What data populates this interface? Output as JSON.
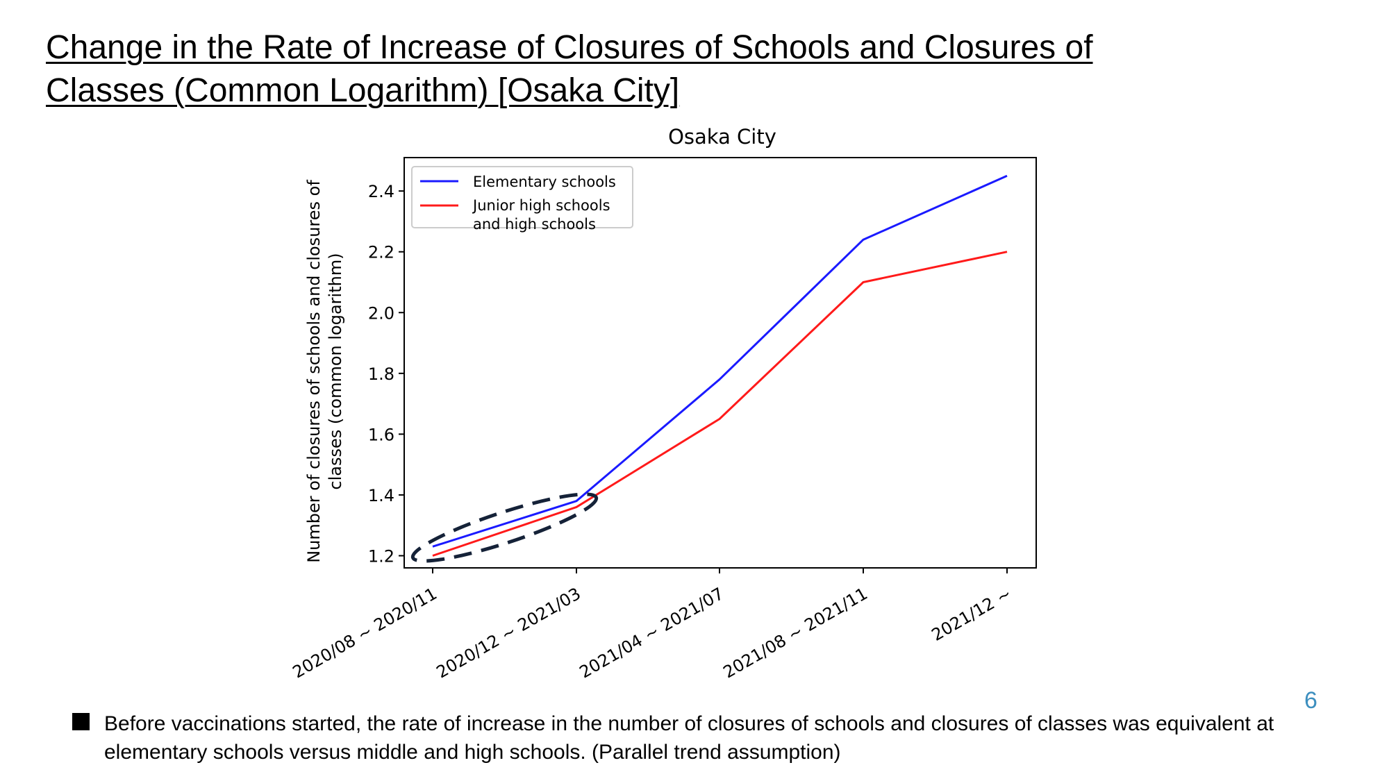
{
  "slide": {
    "title_line1": "Change in the Rate of Increase of Closures of Schools and Closures of",
    "title_line2": "Classes (Common Logarithm) [Osaka City]",
    "note": "Before vaccinations started, the rate of increase in the number of closures of schools and closures of classes was equivalent at elementary schools versus middle and high schools. (Parallel trend assumption)",
    "page_number": "6"
  },
  "chart_data": {
    "type": "line",
    "title": "Osaka City",
    "ylabel_line1": "Number of closures of schools and closures of",
    "ylabel_line2": "classes (common logarithm)",
    "xlabel": "",
    "categories": [
      "2020/08 ~ 2020/11",
      "2020/12 ~ 2021/03",
      "2021/04 ~ 2021/07",
      "2021/08 ~ 2021/11",
      "2021/12 ~"
    ],
    "yticks": [
      "1.2",
      "1.4",
      "1.6",
      "1.8",
      "2.0",
      "2.2",
      "2.4"
    ],
    "ylim": [
      1.16,
      2.51
    ],
    "grid": false,
    "legend_position": "top-left",
    "series": [
      {
        "name": "Elementary schools",
        "color": "#1a1aff",
        "values": [
          1.23,
          1.38,
          1.78,
          2.24,
          2.45
        ]
      },
      {
        "name": "Junior high schools and high schools",
        "color": "#ff1a1a",
        "values": [
          1.2,
          1.36,
          1.65,
          2.1,
          2.2
        ]
      }
    ],
    "annotation": {
      "shape": "dashed-ellipse",
      "color": "#152238",
      "around_categories": [
        0,
        1
      ]
    }
  }
}
